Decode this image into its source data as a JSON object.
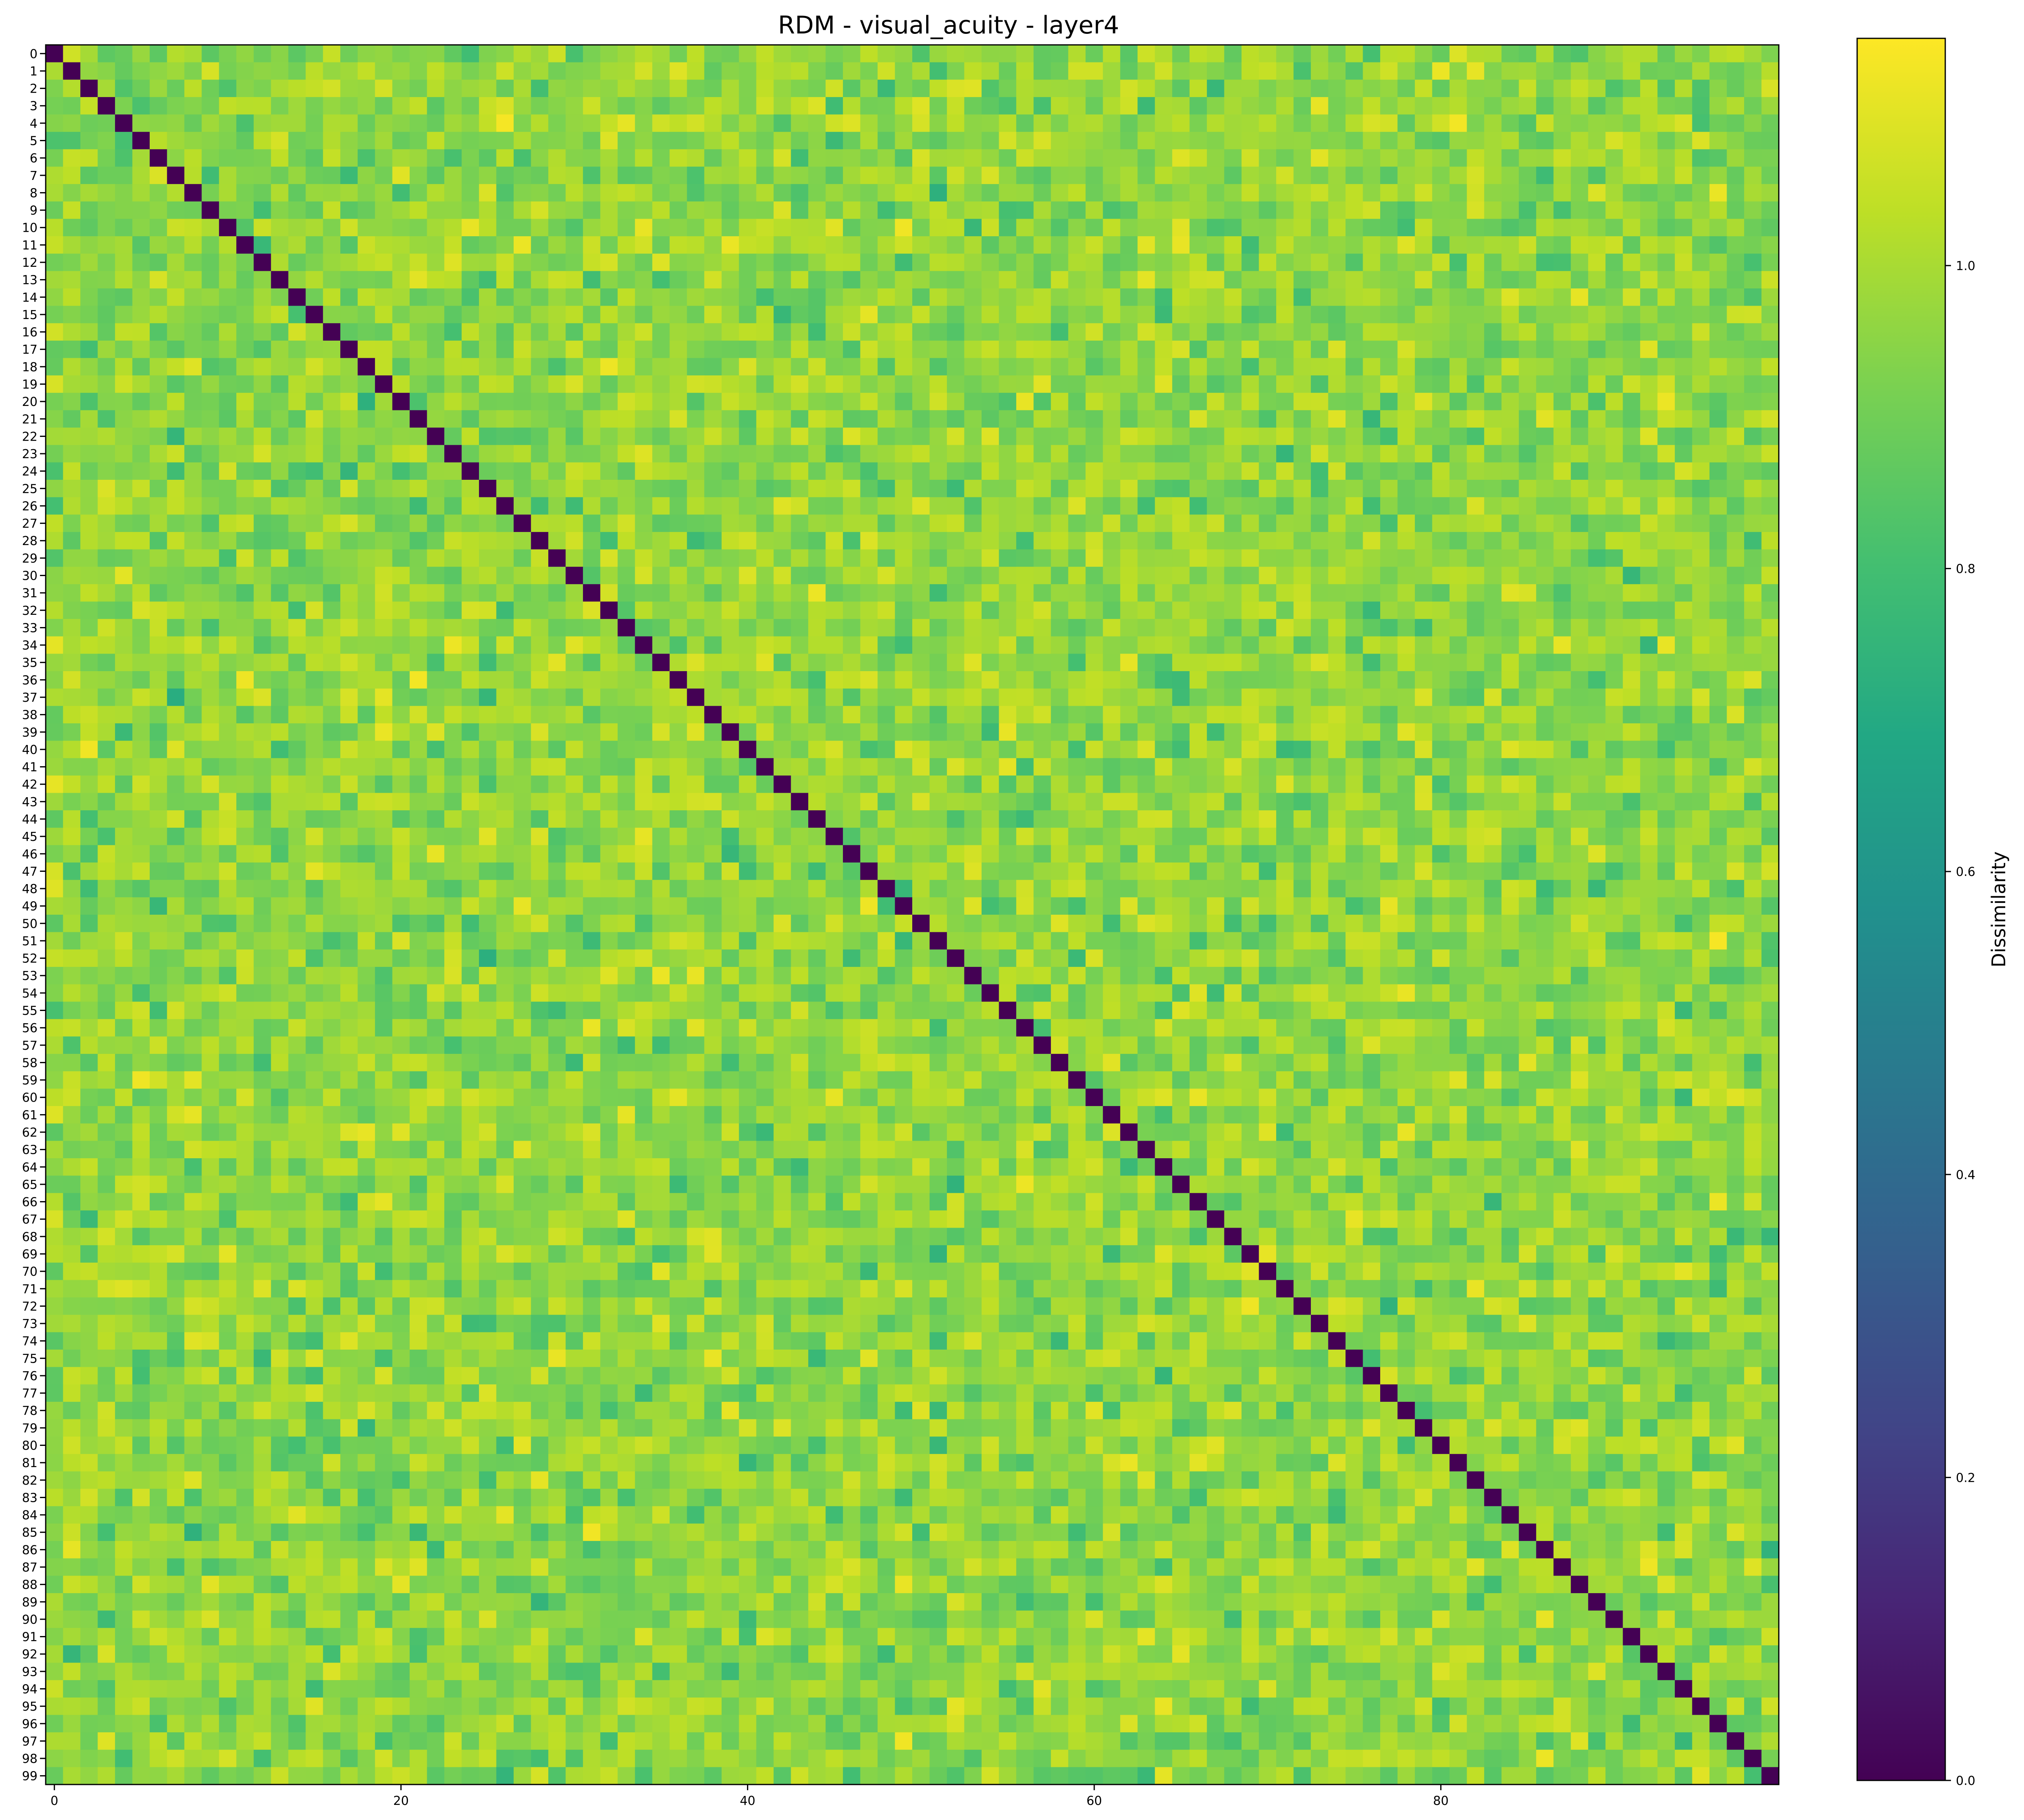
{
  "chart_data": {
    "type": "heatmap",
    "title": "RDM - visual_acuity - layer4",
    "xlabel": "",
    "ylabel": "",
    "size": 100,
    "x_ticks": [
      0,
      20,
      40,
      60,
      80
    ],
    "y_ticks": [
      0,
      1,
      2,
      3,
      4,
      5,
      6,
      7,
      8,
      9,
      10,
      11,
      12,
      13,
      14,
      15,
      16,
      17,
      18,
      19,
      20,
      21,
      22,
      23,
      24,
      25,
      26,
      27,
      28,
      29,
      30,
      31,
      32,
      33,
      34,
      35,
      36,
      37,
      38,
      39,
      40,
      41,
      42,
      43,
      44,
      45,
      46,
      47,
      48,
      49,
      50,
      51,
      52,
      53,
      54,
      55,
      56,
      57,
      58,
      59,
      60,
      61,
      62,
      63,
      64,
      65,
      66,
      67,
      68,
      69,
      70,
      71,
      72,
      73,
      74,
      75,
      76,
      77,
      78,
      79,
      80,
      81,
      82,
      83,
      84,
      85,
      86,
      87,
      88,
      89,
      90,
      91,
      92,
      93,
      94,
      95,
      96,
      97,
      98,
      99
    ],
    "colormap": "viridis",
    "value_range": [
      0.0,
      1.15
    ],
    "diagonal_value": 0.0,
    "off_diagonal_typical_range": [
      0.7,
      1.15
    ],
    "colorbar": {
      "label": "Dissimilarity",
      "ticks": [
        0.0,
        0.2,
        0.4,
        0.6,
        0.8,
        1.0
      ],
      "tick_labels": [
        "0.0",
        "0.2",
        "0.4",
        "0.6",
        "0.8",
        "1.0"
      ]
    },
    "grid": false,
    "symmetric": true
  }
}
